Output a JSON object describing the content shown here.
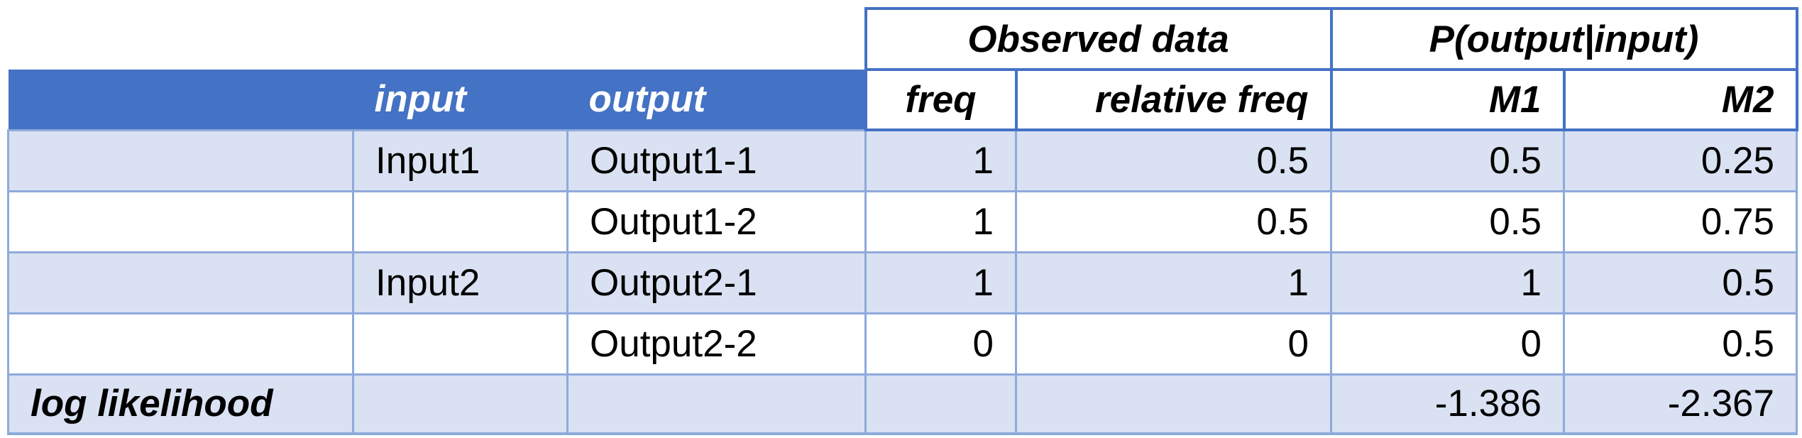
{
  "group_headers": {
    "observed": "Observed data",
    "probability": "P(output|input)"
  },
  "headers": {
    "input": "input",
    "output": "output",
    "freq": "freq",
    "relative_freq": "relative freq",
    "m1": "M1",
    "m2": "M2"
  },
  "rows": [
    {
      "input": "Input1",
      "output": "Output1-1",
      "freq": "1",
      "relative_freq": "0.5",
      "m1": "0.5",
      "m2": "0.25"
    },
    {
      "input": "",
      "output": "Output1-2",
      "freq": "1",
      "relative_freq": "0.5",
      "m1": "0.5",
      "m2": "0.75"
    },
    {
      "input": "Input2",
      "output": "Output2-1",
      "freq": "1",
      "relative_freq": "1",
      "m1": "1",
      "m2": "0.5"
    },
    {
      "input": "",
      "output": "Output2-2",
      "freq": "0",
      "relative_freq": "0",
      "m1": "0",
      "m2": "0.5"
    }
  ],
  "footer": {
    "label": "log likelihood",
    "m1": "-1.386",
    "m2": "-2.367"
  },
  "colors": {
    "header_blue": "#4472c4",
    "band_light": "#d9e1f2",
    "border_light": "#8eaadb"
  }
}
